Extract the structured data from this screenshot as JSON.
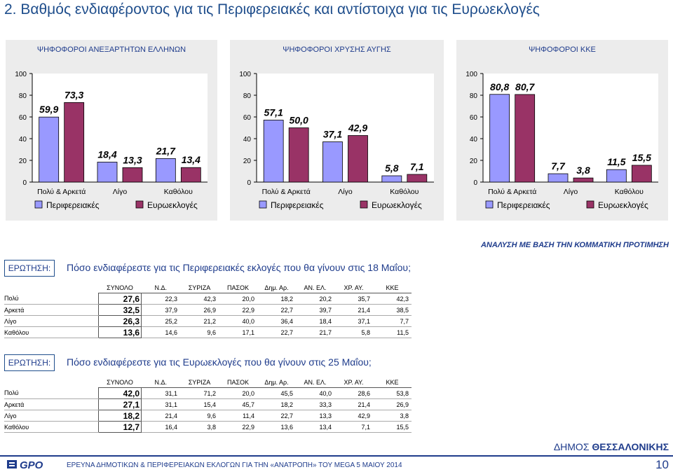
{
  "page": {
    "title": "2.   Βαθμός ενδιαφέροντος για τις Περιφερειακές και αντίστοιχα για τις Ευρωεκλογές",
    "analysis_label": "ΑΝΑΛΥΣΗ ΜΕ ΒΑΣΗ ΤΗΝ ΚΟΜΜΑΤΙΚΗ ΠΡΟΤΙΜΗΣΗ",
    "footer_text": "ΕΡΕΥΝΑ ΔΗΜΟΤΙΚΩΝ & ΠΕΡΙΦΕΡΕΙΑΚΩΝ ΕΚΛΟΓΩΝ ΓΙΑ ΤΗΝ «ΑΝΑΤΡΟΠΗ» ΤΟΥ MEGA  5 ΜΑΙΟΥ 2014",
    "municipality_prefix": "ΔΗΜΟΣ ",
    "municipality_name": "ΘΕΣΣΑΛΟΝΙΚΗΣ",
    "page_number": "10",
    "logo_text": "GPO"
  },
  "colors": {
    "series1": "#9999ff",
    "series2": "#993366",
    "title": "#1f4e8c"
  },
  "chart_data": [
    {
      "type": "bar",
      "title": "ΨΗΦΟΦΟΡΟΙ ΑΝΕΞΑΡΤΗΤΩΝ ΕΛΛΗΝΩΝ",
      "categories": [
        "Πολύ & Αρκετά",
        "Λίγο",
        "Καθόλου"
      ],
      "series": [
        {
          "name": "Περιφερειακές",
          "values": [
            59.9,
            18.4,
            21.7
          ]
        },
        {
          "name": "Ευρωεκλογές",
          "values": [
            73.3,
            13.3,
            13.4
          ]
        }
      ],
      "labels": [
        [
          "59,9",
          "18,4",
          "21,7"
        ],
        [
          "73,3",
          "13,3",
          "13,4"
        ]
      ],
      "yticks": [
        "0",
        "20",
        "40",
        "60",
        "80",
        "100"
      ],
      "ylim": [
        0,
        100
      ],
      "legend": "bottom"
    },
    {
      "type": "bar",
      "title": "ΨΗΦΟΦΟΡΟΙ ΧΡΥΣΗΣ ΑΥΓΗΣ",
      "categories": [
        "Πολύ & Αρκετά",
        "Λίγο",
        "Καθόλου"
      ],
      "series": [
        {
          "name": "Περιφερειακές",
          "values": [
            57.1,
            37.1,
            5.8
          ]
        },
        {
          "name": "Ευρωεκλογές",
          "values": [
            50.0,
            42.9,
            7.1
          ]
        }
      ],
      "labels": [
        [
          "57,1",
          "37,1",
          "5,8"
        ],
        [
          "50,0",
          "42,9",
          "7,1"
        ]
      ],
      "yticks": [
        "0",
        "20",
        "40",
        "60",
        "80",
        "100"
      ],
      "ylim": [
        0,
        100
      ],
      "legend": "bottom"
    },
    {
      "type": "bar",
      "title": "ΨΗΦΟΦΟΡΟΙ ΚΚΕ",
      "categories": [
        "Πολύ & Αρκετά",
        "Λίγο",
        "Καθόλου"
      ],
      "series": [
        {
          "name": "Περιφερειακές",
          "values": [
            80.8,
            7.7,
            11.5
          ]
        },
        {
          "name": "Ευρωεκλογές",
          "values": [
            80.7,
            3.8,
            15.5
          ]
        }
      ],
      "labels": [
        [
          "80,8",
          "7,7",
          "11,5"
        ],
        [
          "80,7",
          "3,8",
          "15,5"
        ]
      ],
      "yticks": [
        "0",
        "20",
        "40",
        "60",
        "80",
        "100"
      ],
      "ylim": [
        0,
        100
      ],
      "legend": "bottom"
    }
  ],
  "tables": [
    {
      "question_label": "ΕΡΩΤΗΣΗ:",
      "question": "Πόσο ενδιαφέρεστε για τις Περιφερειακές εκλογές που θα γίνουν στις 18 Μαΐου;",
      "headers": [
        "ΣΥΝΟΛΟ",
        "Ν.Δ.",
        "ΣΥΡΙΖΑ",
        "ΠΑΣΟΚ",
        "Δημ. Αρ.",
        "ΑΝ. ΕΛ.",
        "ΧΡ. ΑΥ.",
        "ΚΚΕ"
      ],
      "rows": [
        {
          "label": "Πολύ",
          "total": "27,6",
          "values": [
            "22,3",
            "42,3",
            "20,0",
            "18,2",
            "20,2",
            "35,7",
            "42,3"
          ]
        },
        {
          "label": "Αρκετά",
          "total": "32,5",
          "values": [
            "37,9",
            "26,9",
            "22,9",
            "22,7",
            "39,7",
            "21,4",
            "38,5"
          ]
        },
        {
          "label": "Λίγο",
          "total": "26,3",
          "values": [
            "25,2",
            "21,2",
            "40,0",
            "36,4",
            "18,4",
            "37,1",
            "7,7"
          ]
        },
        {
          "label": "Καθόλου",
          "total": "13,6",
          "values": [
            "14,6",
            "9,6",
            "17,1",
            "22,7",
            "21,7",
            "5,8",
            "11,5"
          ]
        }
      ]
    },
    {
      "question_label": "ΕΡΩΤΗΣΗ:",
      "question": "Πόσο ενδιαφέρεστε για τις Ευρωεκλογές που θα γίνουν στις 25 Μαΐου;",
      "headers": [
        "ΣΥΝΟΛΟ",
        "Ν.Δ.",
        "ΣΥΡΙΖΑ",
        "ΠΑΣΟΚ",
        "Δημ. Αρ.",
        "ΑΝ. ΕΛ.",
        "ΧΡ. ΑΥ.",
        "ΚΚΕ"
      ],
      "rows": [
        {
          "label": "Πολύ",
          "total": "42,0",
          "values": [
            "31,1",
            "71,2",
            "20,0",
            "45,5",
            "40,0",
            "28,6",
            "53,8"
          ]
        },
        {
          "label": "Αρκετά",
          "total": "27,1",
          "values": [
            "31,1",
            "15,4",
            "45,7",
            "18,2",
            "33,3",
            "21,4",
            "26,9"
          ]
        },
        {
          "label": "Λίγο",
          "total": "18,2",
          "values": [
            "21,4",
            "9,6",
            "11,4",
            "22,7",
            "13,3",
            "42,9",
            "3,8"
          ]
        },
        {
          "label": "Καθόλου",
          "total": "12,7",
          "values": [
            "16,4",
            "3,8",
            "22,9",
            "13,6",
            "13,4",
            "7,1",
            "15,5"
          ]
        }
      ]
    }
  ]
}
